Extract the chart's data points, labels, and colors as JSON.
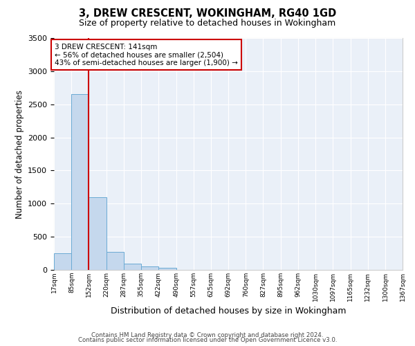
{
  "title": "3, DREW CRESCENT, WOKINGHAM, RG40 1GD",
  "subtitle": "Size of property relative to detached houses in Wokingham",
  "xlabel": "Distribution of detached houses by size in Wokingham",
  "ylabel": "Number of detached properties",
  "bar_color": "#c5d8ed",
  "bar_edge_color": "#6aaad4",
  "background_color": "#eaf0f8",
  "grid_color": "#ffffff",
  "vline_color": "#cc0000",
  "vline_x_index": 1,
  "ylim": [
    0,
    3500
  ],
  "yticks": [
    0,
    500,
    1000,
    1500,
    2000,
    2500,
    3000,
    3500
  ],
  "bin_edges": [
    17,
    85,
    152,
    220,
    287,
    355,
    422,
    490,
    557,
    625,
    692,
    760,
    827,
    895,
    962,
    1030,
    1097,
    1165,
    1232,
    1300,
    1367
  ],
  "bin_labels": [
    "17sqm",
    "85sqm",
    "152sqm",
    "220sqm",
    "287sqm",
    "355sqm",
    "422sqm",
    "490sqm",
    "557sqm",
    "625sqm",
    "692sqm",
    "760sqm",
    "827sqm",
    "895sqm",
    "962sqm",
    "1030sqm",
    "1097sqm",
    "1165sqm",
    "1232sqm",
    "1300sqm",
    "1367sqm"
  ],
  "bar_heights": [
    250,
    2650,
    1100,
    270,
    90,
    50,
    30,
    5,
    3,
    2,
    1,
    1,
    1,
    0,
    0,
    0,
    0,
    0,
    0,
    0
  ],
  "annotation_text": "3 DREW CRESCENT: 141sqm\n← 56% of detached houses are smaller (2,504)\n43% of semi-detached houses are larger (1,900) →",
  "annotation_box_color": "#ffffff",
  "annotation_box_edge": "#cc0000",
  "footer_line1": "Contains HM Land Registry data © Crown copyright and database right 2024.",
  "footer_line2": "Contains public sector information licensed under the Open Government Licence v3.0."
}
